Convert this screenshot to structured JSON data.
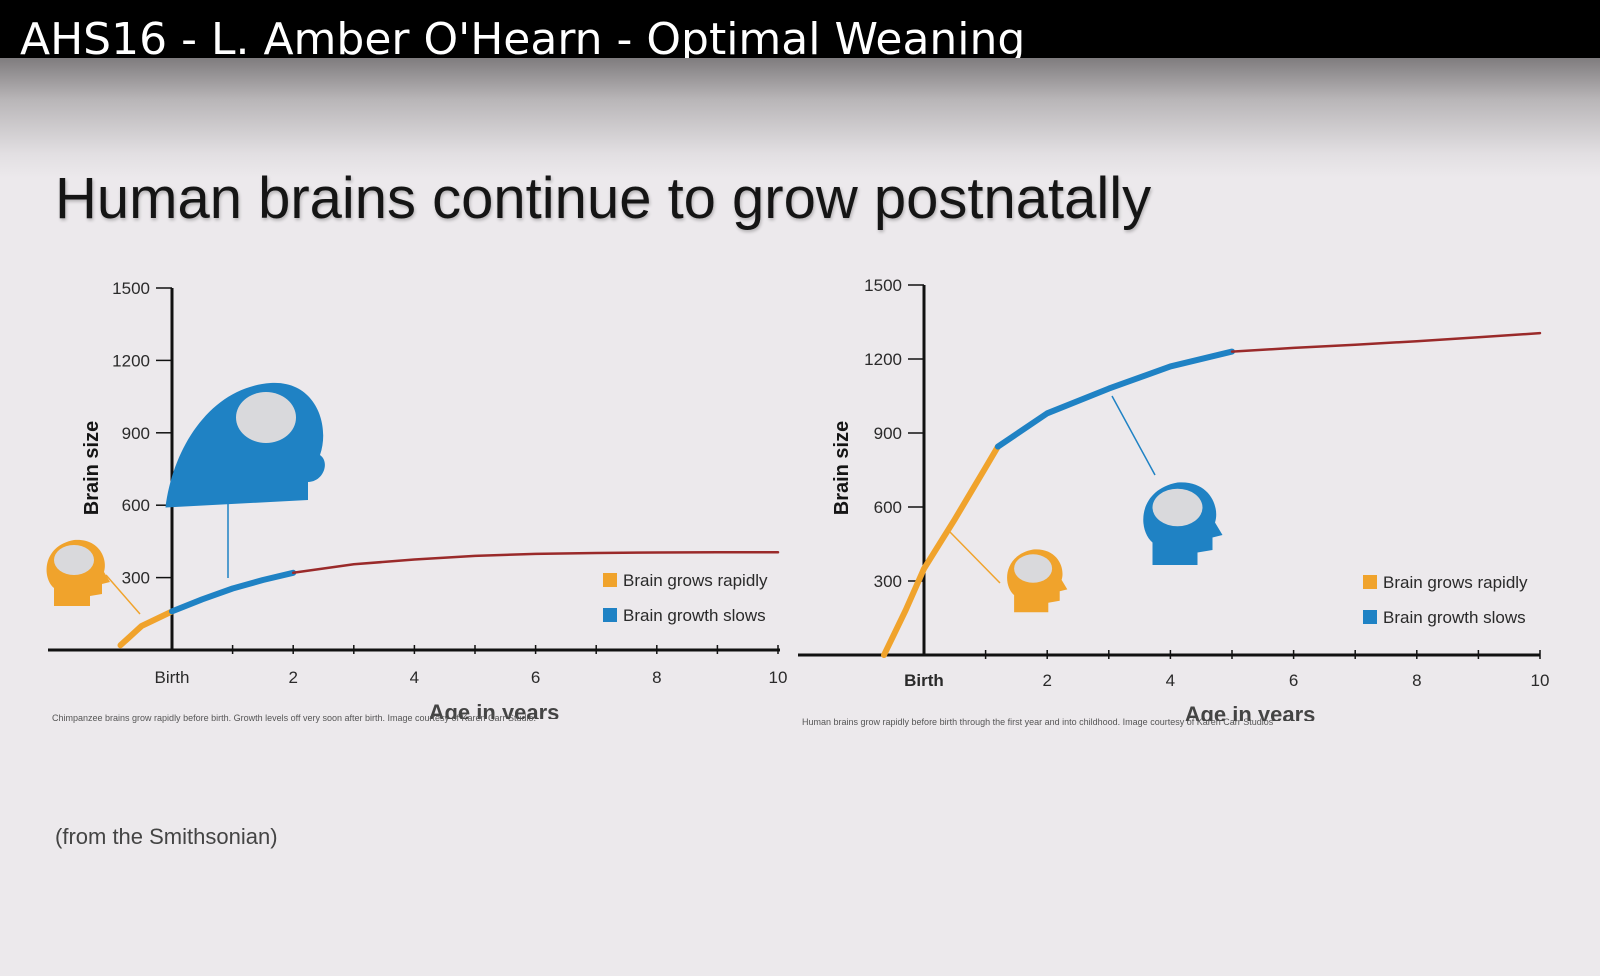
{
  "video": {
    "title": "AHS16 - L. Amber O'Hearn - Optimal Weaning"
  },
  "slide": {
    "title": "Human brains continue to grow postnatally",
    "source": "(from the Smithsonian)"
  },
  "colors": {
    "rapid": "#f0a32c",
    "slow": "#1f82c4",
    "plateau": "#9a2a2a",
    "axis": "#111111",
    "icon_orange": "#f0a32c",
    "icon_blue": "#1f82c4"
  },
  "chart_data": [
    {
      "type": "line",
      "ylabel": "Brain size",
      "xlabel": "Age in years",
      "xlim": [
        -2,
        10
      ],
      "ylim": [
        0,
        1500
      ],
      "yticks": [
        300,
        600,
        900,
        1200,
        1500
      ],
      "xtick_labels": [
        "Birth",
        "2",
        "4",
        "6",
        "8",
        "10"
      ],
      "xtick_values": [
        0,
        2,
        4,
        6,
        8,
        10
      ],
      "legend": [
        "Brain grows rapidly",
        "Brain growth slows"
      ],
      "legend_position": "bottom-right",
      "caption": "Chimpanzee brains grow rapidly before birth. Growth levels off very soon after birth. Image courtesy of Karen Carr Studio.",
      "series": [
        {
          "name": "Brain grows rapidly",
          "color_key": "rapid",
          "x": [
            -0.85,
            -0.5,
            0
          ],
          "y": [
            20,
            100,
            160
          ]
        },
        {
          "name": "Brain growth slows",
          "color_key": "slow",
          "x": [
            0,
            0.5,
            1,
            1.5,
            2
          ],
          "y": [
            160,
            210,
            255,
            290,
            320
          ]
        },
        {
          "color_key": "plateau",
          "x": [
            2,
            3,
            4,
            5,
            6,
            7,
            8,
            9,
            10
          ],
          "y": [
            320,
            355,
            375,
            390,
            398,
            402,
            404,
            405,
            405
          ]
        }
      ],
      "icons": [
        {
          "name": "chimp-infant-head-icon",
          "color_key": "icon_orange"
        },
        {
          "name": "chimp-adult-head-icon",
          "color_key": "icon_blue"
        }
      ]
    },
    {
      "type": "line",
      "ylabel": "Brain size",
      "xlabel": "Age in years",
      "xlim": [
        -2,
        10
      ],
      "ylim": [
        0,
        1500
      ],
      "yticks": [
        300,
        600,
        900,
        1200,
        1500
      ],
      "xtick_labels": [
        "Birth",
        "2",
        "4",
        "6",
        "8",
        "10"
      ],
      "xtick_values": [
        0,
        2,
        4,
        6,
        8,
        10
      ],
      "legend": [
        "Brain grows rapidly",
        "Brain growth slows"
      ],
      "legend_position": "bottom-right",
      "caption": "Human brains grow rapidly before birth through the first year and into childhood. Image courtesy of Karen Carr Studios",
      "series": [
        {
          "name": "Brain grows rapidly",
          "color_key": "rapid",
          "x": [
            -0.65,
            -0.3,
            0,
            0.5,
            1,
            1.2
          ],
          "y": [
            0,
            180,
            350,
            550,
            760,
            845
          ]
        },
        {
          "name": "Brain growth slows",
          "color_key": "slow",
          "x": [
            1.2,
            2,
            3,
            4,
            5
          ],
          "y": [
            845,
            980,
            1080,
            1170,
            1230
          ]
        },
        {
          "color_key": "plateau",
          "x": [
            5,
            6,
            7,
            8,
            9,
            10
          ],
          "y": [
            1230,
            1245,
            1258,
            1272,
            1288,
            1305
          ]
        }
      ],
      "icons": [
        {
          "name": "human-infant-head-icon",
          "color_key": "icon_orange"
        },
        {
          "name": "human-child-head-icon",
          "color_key": "icon_blue"
        }
      ]
    }
  ]
}
